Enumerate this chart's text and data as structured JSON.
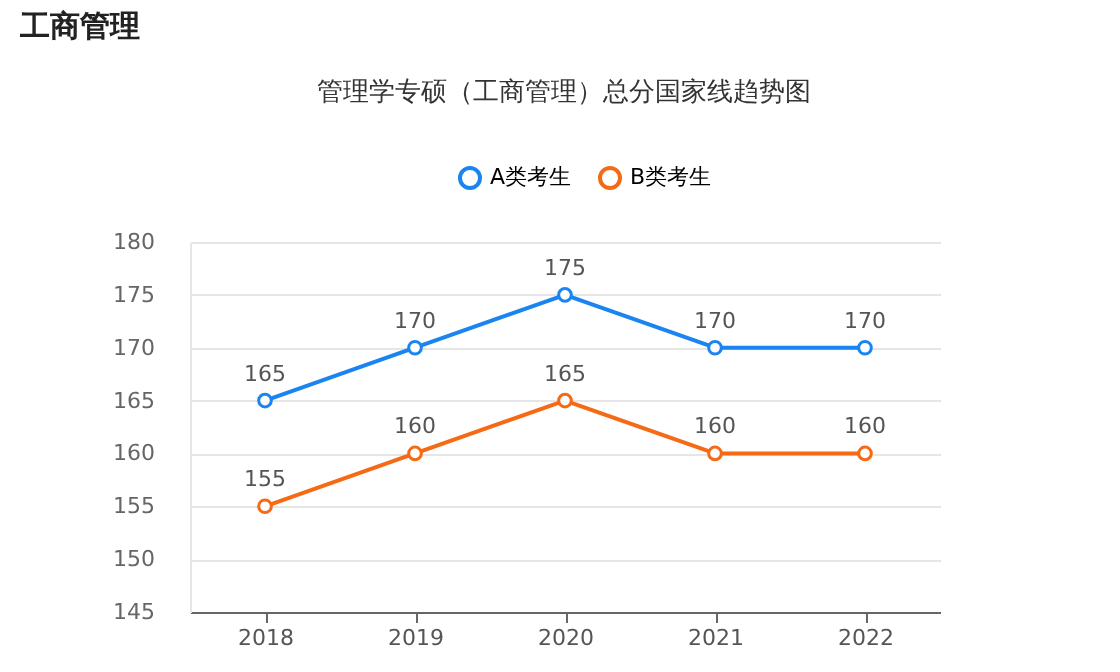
{
  "chart_data": {
    "type": "line",
    "title": "管理学专硕（工商管理）总分国家线趋势图",
    "annotations": [
      "工商管理"
    ],
    "categories": [
      "2018",
      "2019",
      "2020",
      "2021",
      "2022"
    ],
    "series": [
      {
        "name": "A类考生",
        "color": "#1a85f0",
        "values": [
          165,
          170,
          175,
          170,
          170
        ]
      },
      {
        "name": "B类考生",
        "color": "#f56a14",
        "values": [
          155,
          160,
          165,
          160,
          160
        ]
      }
    ],
    "ylim": [
      145,
      180
    ],
    "yticks": [
      145,
      150,
      155,
      160,
      165,
      170,
      175,
      180
    ],
    "grid": "y",
    "legend": "top",
    "marker": "circle",
    "line_style": "solid",
    "data_labels": true
  }
}
